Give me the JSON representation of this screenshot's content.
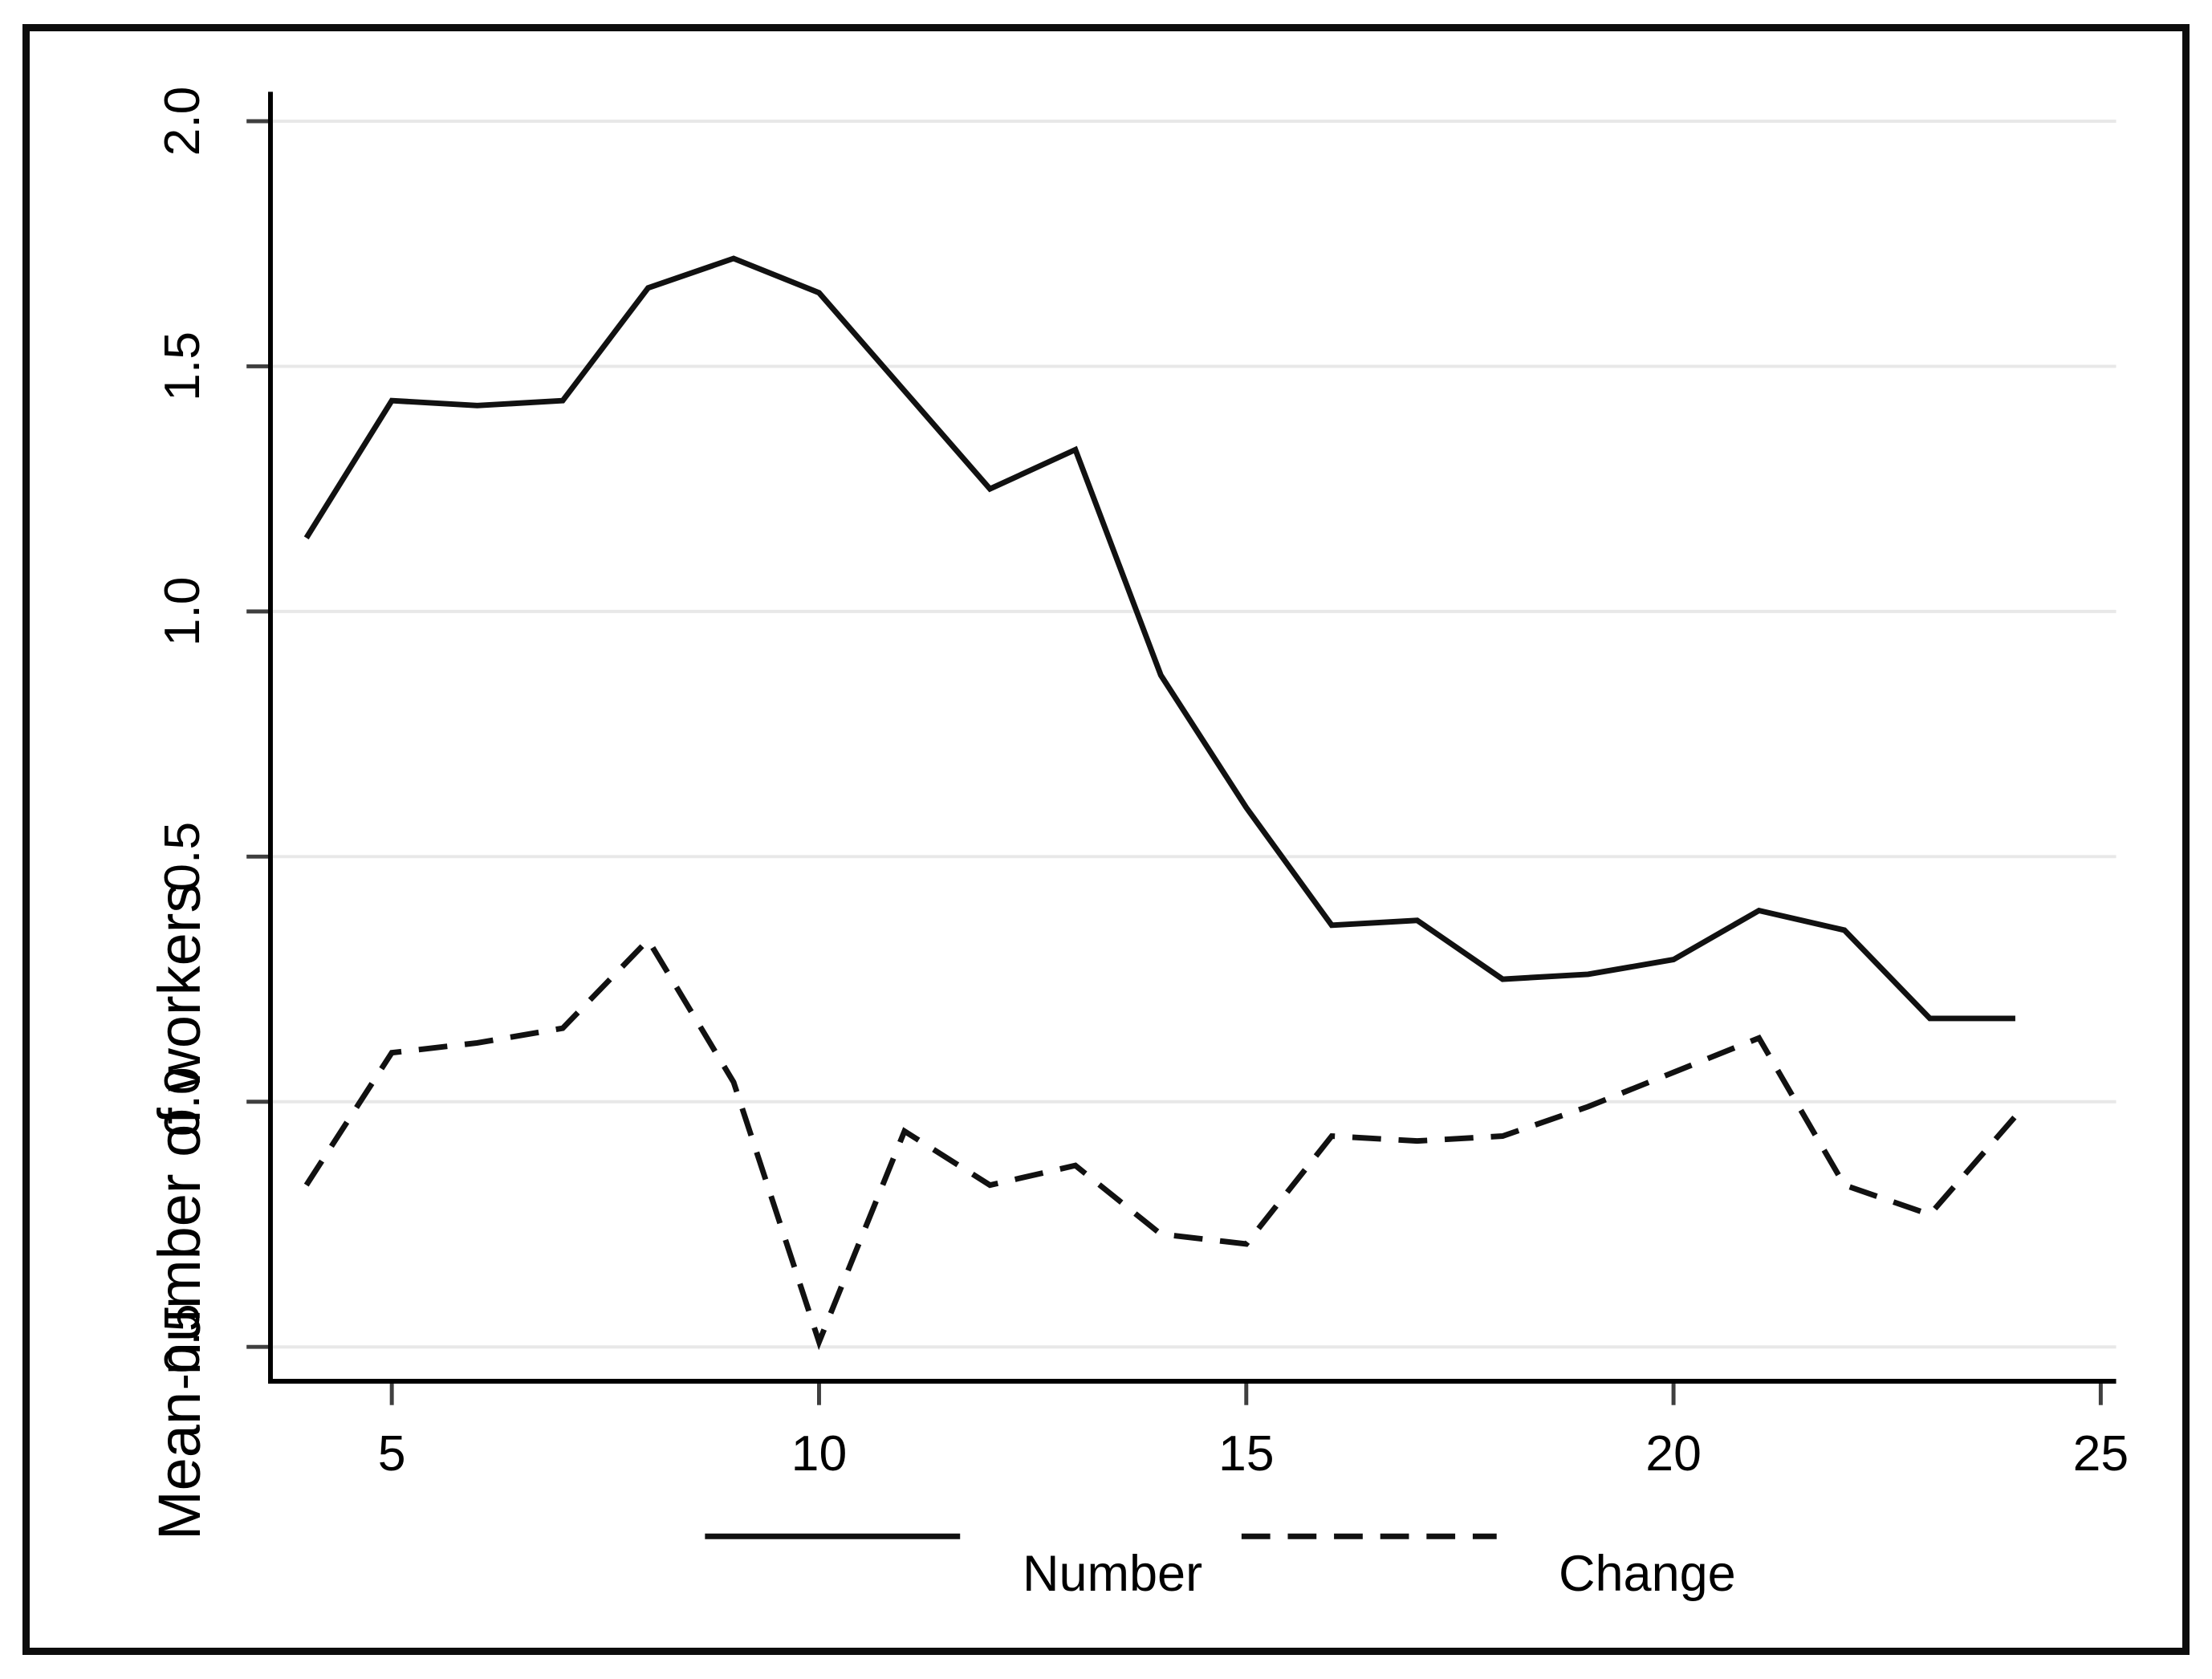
{
  "figure": {
    "y_axis_title": "Mean number of workers",
    "x_ticks": [
      "5",
      "10",
      "15",
      "20",
      "25"
    ],
    "y_ticks": [
      "2.0",
      "1.5",
      "1.0",
      "0.5",
      "0.0",
      "-0.5"
    ],
    "legend": [
      {
        "label": "Number",
        "style": "solid"
      },
      {
        "label": "Change",
        "style": "dashed"
      }
    ],
    "colors": {
      "line": "#111111",
      "grid": "#e8e8e8",
      "tick": "#3f3f3f",
      "axis": "#000000",
      "frame": "#0d0d0d",
      "background": "#ffffff"
    }
  },
  "chart_data": {
    "type": "line",
    "title": "",
    "xlabel": "",
    "ylabel": "Mean number of workers",
    "x": [
      4,
      5,
      6,
      7,
      8,
      9,
      10,
      11,
      12,
      13,
      14,
      15,
      16,
      17,
      18,
      19,
      20,
      21,
      22,
      23,
      24
    ],
    "series": [
      {
        "name": "Number",
        "style": "solid",
        "values": [
          1.15,
          1.43,
          1.42,
          1.43,
          1.66,
          1.72,
          1.65,
          1.45,
          1.25,
          1.33,
          0.87,
          0.6,
          0.36,
          0.37,
          0.25,
          0.26,
          0.29,
          0.39,
          0.35,
          0.17,
          0.17
        ]
      },
      {
        "name": "Change",
        "style": "dashed",
        "values": [
          -0.17,
          0.1,
          0.12,
          0.15,
          0.33,
          0.04,
          -0.49,
          -0.06,
          -0.17,
          -0.13,
          -0.27,
          -0.29,
          -0.07,
          -0.08,
          -0.07,
          -0.01,
          0.06,
          0.13,
          -0.17,
          -0.23,
          -0.03
        ]
      }
    ],
    "x_tick_values": [
      5,
      10,
      15,
      20,
      25
    ],
    "y_tick_values": [
      2.0,
      1.5,
      1.0,
      0.5,
      0.0,
      -0.5
    ],
    "xlim": [
      3.58,
      25.18
    ],
    "ylim": [
      -0.57,
      2.06
    ],
    "grid": "horizontal",
    "legend_position": "bottom-center"
  }
}
